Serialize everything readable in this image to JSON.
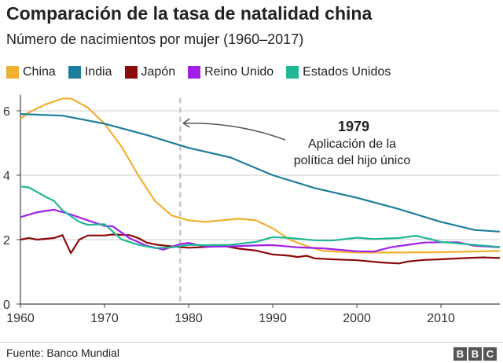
{
  "chart_data": {
    "type": "line",
    "title": "Comparación de la tasa de natalidad china",
    "subtitle": "Número de nacimientos por mujer (1960–2017)",
    "xlim": [
      1960,
      2017
    ],
    "ylim": [
      0,
      6.5
    ],
    "xticks": [
      1960,
      1970,
      1980,
      1990,
      2000,
      2010
    ],
    "yticks": [
      0,
      2,
      4,
      6
    ],
    "grid": true,
    "legend": "top",
    "series": [
      {
        "name": "China",
        "color": "#f0b030",
        "x": [
          1960,
          1961,
          1963,
          1965,
          1966,
          1968,
          1970,
          1972,
          1974,
          1976,
          1978,
          1980,
          1982,
          1984,
          1986,
          1988,
          1990,
          1992,
          1994,
          1996,
          2000,
          2005,
          2010,
          2017
        ],
        "y": [
          5.75,
          5.95,
          6.2,
          6.38,
          6.38,
          6.1,
          5.6,
          4.9,
          4.0,
          3.2,
          2.75,
          2.6,
          2.55,
          2.6,
          2.65,
          2.6,
          2.35,
          2.0,
          1.8,
          1.65,
          1.6,
          1.6,
          1.61,
          1.65
        ]
      },
      {
        "name": "India",
        "color": "#1e7d9c",
        "x": [
          1960,
          1965,
          1970,
          1975,
          1980,
          1985,
          1990,
          1995,
          2000,
          2005,
          2010,
          2014,
          2017
        ],
        "y": [
          5.9,
          5.85,
          5.6,
          5.25,
          4.85,
          4.55,
          4.0,
          3.6,
          3.3,
          2.95,
          2.55,
          2.3,
          2.25
        ]
      },
      {
        "name": "Japón",
        "color": "#8b0a0a",
        "x": [
          1960,
          1961,
          1962,
          1964,
          1965,
          1966,
          1967,
          1968,
          1970,
          1971,
          1973,
          1974,
          1975,
          1976,
          1978,
          1980,
          1982,
          1984,
          1986,
          1988,
          1990,
          1992,
          1993,
          1994,
          1995,
          1997,
          2000,
          2003,
          2005,
          2006,
          2008,
          2010,
          2013,
          2015,
          2017
        ],
        "y": [
          2.0,
          2.05,
          2.0,
          2.05,
          2.14,
          1.58,
          2.0,
          2.13,
          2.13,
          2.16,
          2.14,
          2.05,
          1.91,
          1.85,
          1.79,
          1.75,
          1.77,
          1.81,
          1.72,
          1.66,
          1.54,
          1.5,
          1.46,
          1.5,
          1.42,
          1.39,
          1.36,
          1.29,
          1.26,
          1.32,
          1.37,
          1.39,
          1.43,
          1.45,
          1.43
        ]
      },
      {
        "name": "Reino Unido",
        "color": "#a020e8",
        "x": [
          1960,
          1962,
          1964,
          1966,
          1968,
          1970,
          1971,
          1973,
          1975,
          1977,
          1979,
          1980,
          1982,
          1985,
          1988,
          1990,
          1993,
          1996,
          2000,
          2002,
          2004,
          2006,
          2008,
          2010,
          2012,
          2014,
          2017
        ],
        "y": [
          2.7,
          2.85,
          2.93,
          2.78,
          2.6,
          2.43,
          2.41,
          2.04,
          1.81,
          1.69,
          1.86,
          1.9,
          1.78,
          1.79,
          1.82,
          1.83,
          1.76,
          1.73,
          1.64,
          1.63,
          1.76,
          1.84,
          1.91,
          1.92,
          1.92,
          1.81,
          1.76
        ]
      },
      {
        "name": "Estados Unidos",
        "color": "#1fb895",
        "x": [
          1960,
          1961,
          1963,
          1964,
          1965,
          1967,
          1968,
          1970,
          1972,
          1974,
          1976,
          1978,
          1980,
          1982,
          1985,
          1988,
          1990,
          1992,
          1995,
          1997,
          2000,
          2002,
          2005,
          2007,
          2009,
          2010,
          2013,
          2017
        ],
        "y": [
          3.65,
          3.62,
          3.33,
          3.2,
          2.91,
          2.55,
          2.46,
          2.48,
          2.01,
          1.84,
          1.74,
          1.76,
          1.84,
          1.83,
          1.84,
          1.93,
          2.08,
          2.05,
          1.98,
          1.97,
          2.06,
          2.02,
          2.05,
          2.12,
          2.0,
          1.93,
          1.86,
          1.77
        ]
      }
    ],
    "annotation": {
      "x": 1979,
      "year_label": "1979",
      "text_line1": "Aplicación de la",
      "text_line2": "política del hijo único"
    }
  },
  "footer": {
    "source": "Fuente: Banco Mundial",
    "logo_letters": [
      "B",
      "B",
      "C"
    ]
  }
}
